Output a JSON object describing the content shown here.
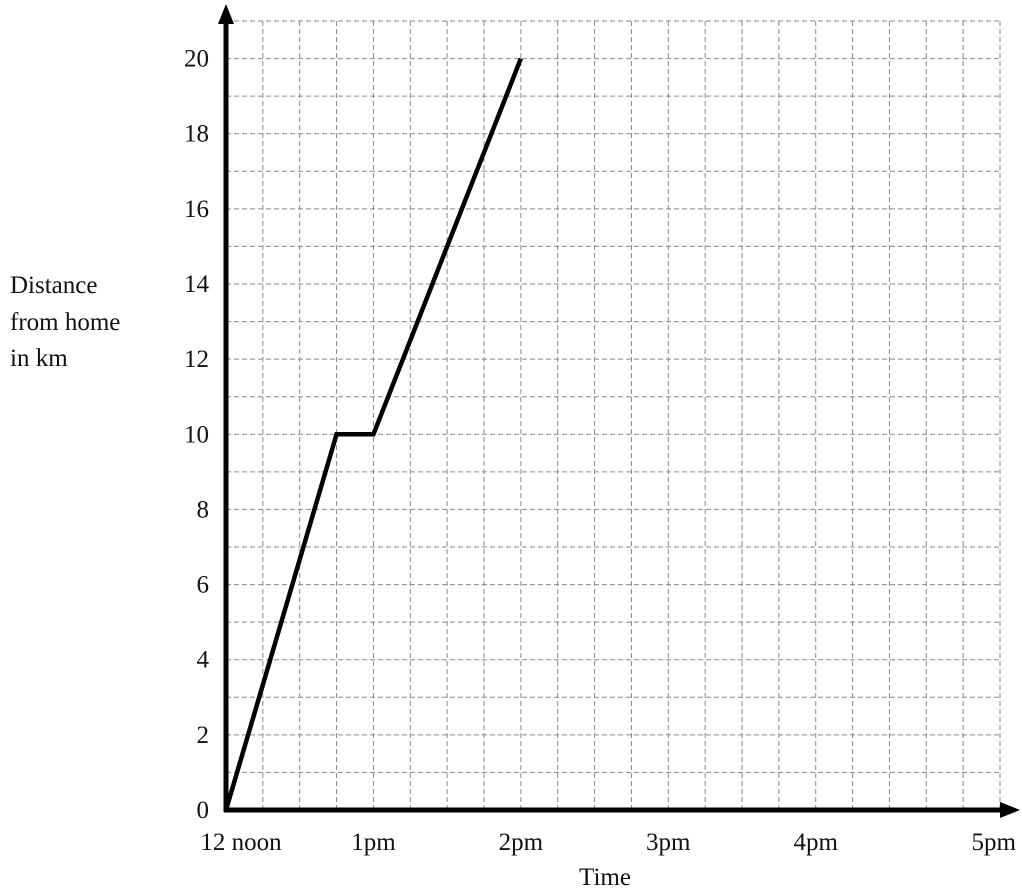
{
  "chart_data": {
    "type": "line",
    "xlabel": "Time",
    "ylabel_lines": [
      "Distance",
      "from home",
      "in km"
    ],
    "x_ticks": [
      {
        "value": 0,
        "label": "12 noon"
      },
      {
        "value": 1,
        "label": "1pm"
      },
      {
        "value": 2,
        "label": "2pm"
      },
      {
        "value": 3,
        "label": "3pm"
      },
      {
        "value": 4,
        "label": "4pm"
      },
      {
        "value": 5,
        "label": "5pm"
      }
    ],
    "y_ticks": [
      0,
      2,
      4,
      6,
      8,
      10,
      12,
      14,
      16,
      18,
      20
    ],
    "xlim": [
      0,
      5.25
    ],
    "ylim": [
      0,
      21
    ],
    "x_unit": "hours after 12 noon",
    "grid": true,
    "grid_step": {
      "x": 0.25,
      "y": 1
    },
    "series": [
      {
        "x": [
          0,
          0.75,
          1,
          2
        ],
        "y": [
          0,
          10,
          10,
          20
        ],
        "color": "#000000"
      }
    ]
  }
}
